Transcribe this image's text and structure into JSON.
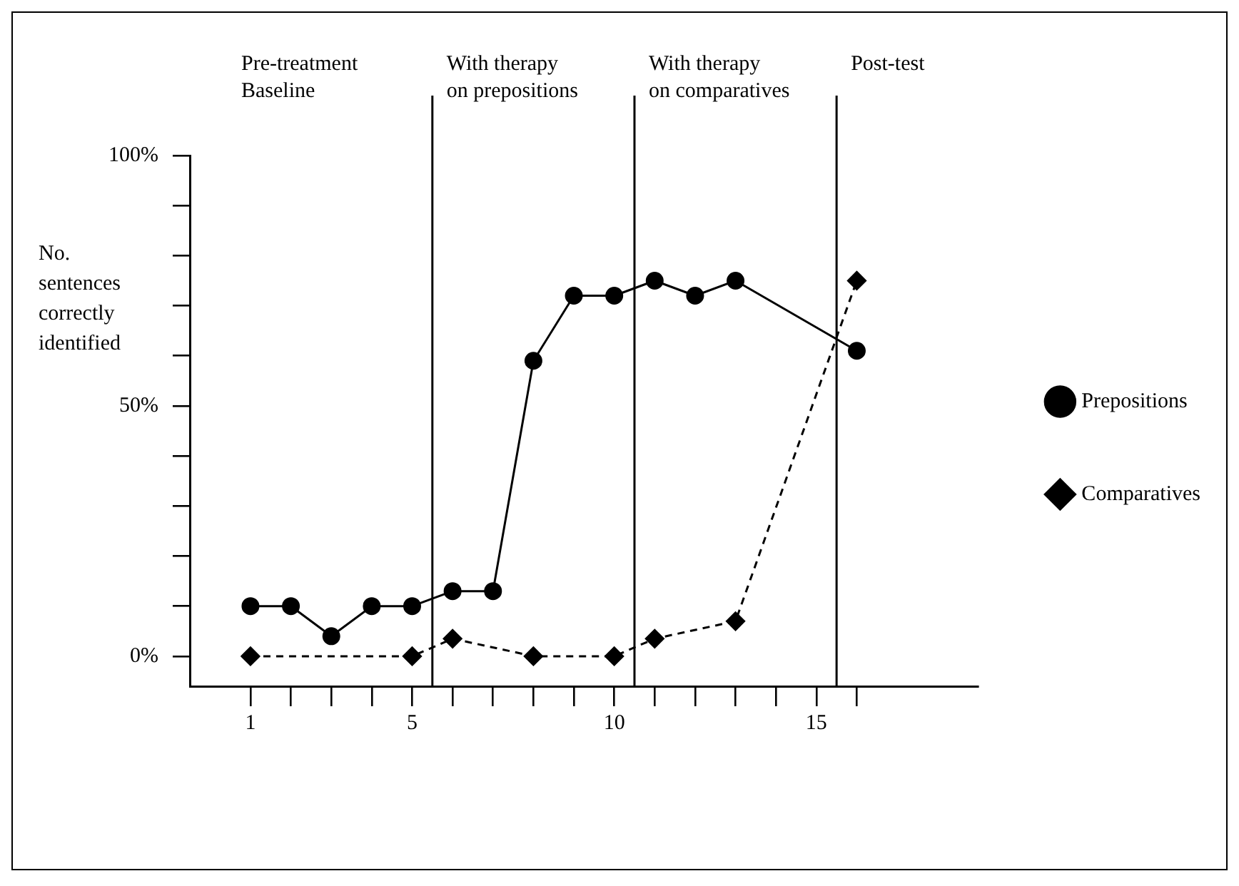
{
  "chart_data": {
    "type": "line",
    "xlabel": null,
    "ylabel": "No. sentences correctly identified",
    "series": [
      {
        "name": "Prepositions",
        "color": "#000000",
        "marker": "circle",
        "line_style": "solid",
        "x": [
          1,
          2,
          3,
          4,
          5,
          6,
          7,
          8,
          9,
          10,
          11,
          12,
          13,
          16
        ],
        "values": [
          10,
          10,
          4,
          10,
          10,
          13,
          13,
          59,
          72,
          72,
          75,
          72,
          75,
          61
        ]
      },
      {
        "name": "Comparatives",
        "color": "#000000",
        "marker": "diamond",
        "line_style": "dashed",
        "x": [
          1,
          5,
          6,
          8,
          10,
          11,
          13,
          16
        ],
        "values": [
          0,
          0,
          3.5,
          0,
          0,
          3.5,
          7,
          75
        ]
      }
    ],
    "xlim": [
      -0.5,
      19
    ],
    "xticks": [
      1,
      {
        "value": 2,
        "label": null
      },
      {
        "value": 3,
        "label": null
      },
      {
        "value": 4,
        "label": null
      },
      5,
      {
        "value": 6,
        "label": null
      },
      {
        "value": 7,
        "label": null
      },
      {
        "value": 8,
        "label": null
      },
      {
        "value": 9,
        "label": null
      },
      10,
      {
        "value": 11,
        "label": null
      },
      {
        "value": 12,
        "label": null
      },
      {
        "value": 13,
        "label": null
      },
      {
        "value": 14,
        "label": null
      },
      15,
      {
        "value": 16,
        "label": null
      }
    ],
    "ylim": [
      -6,
      100
    ],
    "yticks": [
      {
        "value": 0,
        "label": "0%"
      },
      {
        "value": 10,
        "label": null
      },
      {
        "value": 20,
        "label": null
      },
      {
        "value": 30,
        "label": null
      },
      {
        "value": 40,
        "label": null
      },
      {
        "value": 50,
        "label": "50%"
      },
      {
        "value": 60,
        "label": null
      },
      {
        "value": 70,
        "label": null
      },
      {
        "value": 80,
        "label": null
      },
      {
        "value": 90,
        "label": null
      },
      {
        "value": 100,
        "label": "100%"
      }
    ],
    "ref_lines": [
      {
        "axis": "x",
        "value": 5.5
      },
      {
        "axis": "x",
        "value": 10.5
      },
      {
        "axis": "x",
        "value": 15.5
      }
    ],
    "annotations": [
      "Pre-treatment\nBaseline",
      "With therapy\non prepositions",
      "With therapy\non comparatives",
      "Post-test"
    ],
    "grid": false,
    "legend": "right"
  }
}
